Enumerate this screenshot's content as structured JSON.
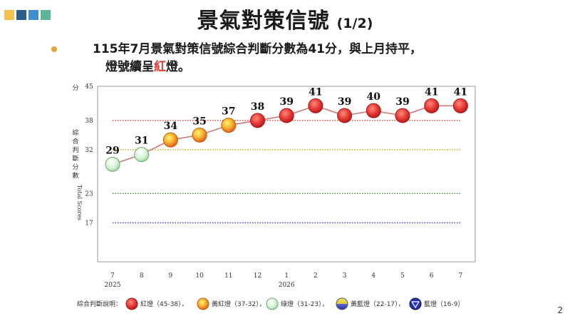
{
  "slide": {
    "title": "景氣對策信號",
    "title_sub": "(1/2)",
    "lead_line1_before": "115年7月景氣對策信號綜合判斷分數為41分，與上月持平，",
    "lead_line2_before": "燈號續呈",
    "lead_line2_red": "紅",
    "lead_line2_after": "燈。",
    "page_number": "2",
    "deco_colors": [
      "#f2c14e",
      "#2b5f8a",
      "#3f8fcf",
      "#5fb59c"
    ]
  },
  "chart_data": {
    "type": "line",
    "ylabel_top": "分",
    "ylabel_cn": [
      "綜",
      "合",
      "判",
      "斷",
      "分",
      "數"
    ],
    "ylabel_en": "Total Scores",
    "yticks": [
      45,
      38,
      32,
      23,
      17
    ],
    "ylim": [
      9,
      45
    ],
    "reference_lines": [
      {
        "value": 38,
        "color": "#e53935"
      },
      {
        "value": 32,
        "color": "#c9a400"
      },
      {
        "value": 23,
        "color": "#3a8a3a"
      },
      {
        "value": 17,
        "color": "#3a3ac0"
      }
    ],
    "categories": [
      "7",
      "8",
      "9",
      "10",
      "11",
      "12",
      "1",
      "2",
      "3",
      "4",
      "5",
      "6",
      "7"
    ],
    "year_labels": [
      {
        "index": 0,
        "label": "2025"
      },
      {
        "index": 6,
        "label": "2026"
      }
    ],
    "values": [
      29,
      31,
      34,
      35,
      37,
      38,
      39,
      41,
      39,
      40,
      39,
      41,
      41
    ],
    "signal_colors": {
      "red": "#e53935",
      "yellow_red": "#f08a24",
      "green": "#d8f4d8",
      "yellow_blue": "#e8c840",
      "blue": "#2433b8"
    },
    "legend_title": "綜合判斷說明：",
    "legend": [
      {
        "signal": "red",
        "label": "紅燈（45-38）"
      },
      {
        "signal": "yellow_red",
        "label": "黃紅燈（37-32）"
      },
      {
        "signal": "green",
        "label": "綠燈（31-23）"
      },
      {
        "signal": "yellow_blue",
        "label": "黃藍燈（22-17）"
      },
      {
        "signal": "blue",
        "label": "藍燈（16-9）"
      }
    ],
    "legend_separator": "，"
  }
}
